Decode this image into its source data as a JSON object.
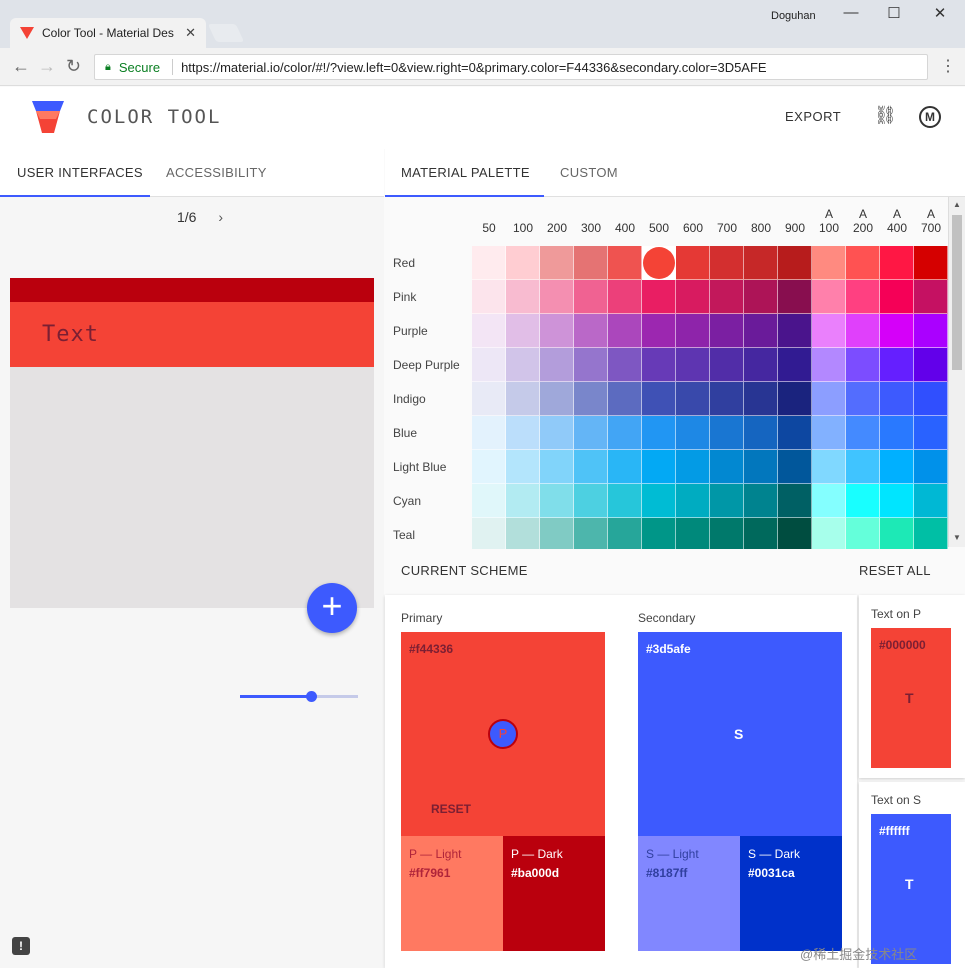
{
  "browser": {
    "tab_title": "Color Tool - Material Des",
    "user": "Doguhan",
    "secure_label": "Secure",
    "url": "https://material.io/color/#!/?view.left=0&view.right=0&primary.color=F44336&secondary.color=3D5AFE"
  },
  "app": {
    "title": "COLOR TOOL",
    "export_label": "EXPORT"
  },
  "left_tabs": [
    "USER INTERFACES",
    "ACCESSIBILITY"
  ],
  "right_tabs": [
    "MATERIAL PALETTE",
    "CUSTOM"
  ],
  "preview": {
    "pager": "1/6",
    "toolbar_text": "Text",
    "slider_value": 0.6
  },
  "palette": {
    "shades": [
      {
        "top": "",
        "bottom": "50"
      },
      {
        "top": "",
        "bottom": "100"
      },
      {
        "top": "",
        "bottom": "200"
      },
      {
        "top": "",
        "bottom": "300"
      },
      {
        "top": "",
        "bottom": "400"
      },
      {
        "top": "",
        "bottom": "500"
      },
      {
        "top": "",
        "bottom": "600"
      },
      {
        "top": "",
        "bottom": "700"
      },
      {
        "top": "",
        "bottom": "800"
      },
      {
        "top": "",
        "bottom": "900"
      },
      {
        "top": "A",
        "bottom": "100"
      },
      {
        "top": "A",
        "bottom": "200"
      },
      {
        "top": "A",
        "bottom": "400"
      },
      {
        "top": "A",
        "bottom": "700"
      }
    ],
    "rows": [
      {
        "name": "Red",
        "colors": [
          "#ffebee",
          "#ffcdd2",
          "#ef9a9a",
          "#e57373",
          "#ef5350",
          "#f44336",
          "#e53935",
          "#d32f2f",
          "#c62828",
          "#b71c1c",
          "#ff8a80",
          "#ff5252",
          "#ff1744",
          "#d50000"
        ]
      },
      {
        "name": "Pink",
        "colors": [
          "#fce4ec",
          "#f8bbd0",
          "#f48fb1",
          "#f06292",
          "#ec407a",
          "#e91e63",
          "#d81b60",
          "#c2185b",
          "#ad1457",
          "#880e4f",
          "#ff80ab",
          "#ff4081",
          "#f50057",
          "#c51162"
        ]
      },
      {
        "name": "Purple",
        "colors": [
          "#f3e5f5",
          "#e1bee7",
          "#ce93d8",
          "#ba68c8",
          "#ab47bc",
          "#9c27b0",
          "#8e24aa",
          "#7b1fa2",
          "#6a1b9a",
          "#4a148c",
          "#ea80fc",
          "#e040fb",
          "#d500f9",
          "#aa00ff"
        ]
      },
      {
        "name": "Deep Purple",
        "colors": [
          "#ede7f6",
          "#d1c4e9",
          "#b39ddb",
          "#9575cd",
          "#7e57c2",
          "#673ab7",
          "#5e35b1",
          "#512da8",
          "#4527a0",
          "#311b92",
          "#b388ff",
          "#7c4dff",
          "#651fff",
          "#6200ea"
        ]
      },
      {
        "name": "Indigo",
        "colors": [
          "#e8eaf6",
          "#c5cae9",
          "#9fa8da",
          "#7986cb",
          "#5c6bc0",
          "#3f51b5",
          "#3949ab",
          "#303f9f",
          "#283593",
          "#1a237e",
          "#8c9eff",
          "#536dfe",
          "#3d5afe",
          "#304ffe"
        ]
      },
      {
        "name": "Blue",
        "colors": [
          "#e3f2fd",
          "#bbdefb",
          "#90caf9",
          "#64b5f6",
          "#42a5f5",
          "#2196f3",
          "#1e88e5",
          "#1976d2",
          "#1565c0",
          "#0d47a1",
          "#82b1ff",
          "#448aff",
          "#2979ff",
          "#2962ff"
        ]
      },
      {
        "name": "Light Blue",
        "colors": [
          "#e1f5fe",
          "#b3e5fc",
          "#81d4fa",
          "#4fc3f7",
          "#29b6f6",
          "#03a9f4",
          "#039be5",
          "#0288d1",
          "#0277bd",
          "#01579b",
          "#80d8ff",
          "#40c4ff",
          "#00b0ff",
          "#0091ea"
        ]
      },
      {
        "name": "Cyan",
        "colors": [
          "#e0f7fa",
          "#b2ebf2",
          "#80deea",
          "#4dd0e1",
          "#26c6da",
          "#00bcd4",
          "#00acc1",
          "#0097a7",
          "#00838f",
          "#006064",
          "#84ffff",
          "#18ffff",
          "#00e5ff",
          "#00b8d4"
        ]
      },
      {
        "name": "Teal",
        "colors": [
          "#e0f2f1",
          "#b2dfdb",
          "#80cbc4",
          "#4db6ac",
          "#26a69a",
          "#009688",
          "#00897b",
          "#00796b",
          "#00695c",
          "#004d40",
          "#a7ffeb",
          "#64ffda",
          "#1de9b6",
          "#00bfa5"
        ]
      }
    ],
    "selected": {
      "row": 0,
      "shade": 5
    }
  },
  "scheme": {
    "header": "CURRENT SCHEME",
    "reset_all": "RESET ALL",
    "primary": {
      "title": "Primary",
      "hex": "#f44336",
      "letter": "P",
      "reset": "RESET",
      "light_label": "P — Light",
      "light_hex": "#ff7961",
      "dark_label": "P — Dark",
      "dark_hex": "#ba000d"
    },
    "secondary": {
      "title": "Secondary",
      "hex": "#3d5afe",
      "letter": "S",
      "light_label": "S — Light",
      "light_hex": "#8187ff",
      "dark_label": "S — Dark",
      "dark_hex": "#0031ca"
    },
    "text_on_p": {
      "title": "Text on P",
      "hex": "#000000",
      "letter": "T"
    },
    "text_on_s": {
      "title": "Text on S",
      "hex": "#ffffff",
      "letter": "T"
    }
  },
  "colors": {
    "primary": "#f44336",
    "primary_dark": "#ba000d",
    "primary_light": "#ff7961",
    "secondary": "#3d5afe",
    "secondary_dark": "#0031ca",
    "secondary_light": "#8187ff",
    "accent": "#3d5afe"
  },
  "icons": {
    "back": "arrow-left-icon",
    "forward": "arrow-right-icon",
    "reload": "reload-icon",
    "lock": "lock-icon",
    "link": "link-icon",
    "material": "material-logo-icon",
    "fab": "plus-icon",
    "feedback": "feedback-icon"
  },
  "watermark": "@稀土掘金技术社区"
}
